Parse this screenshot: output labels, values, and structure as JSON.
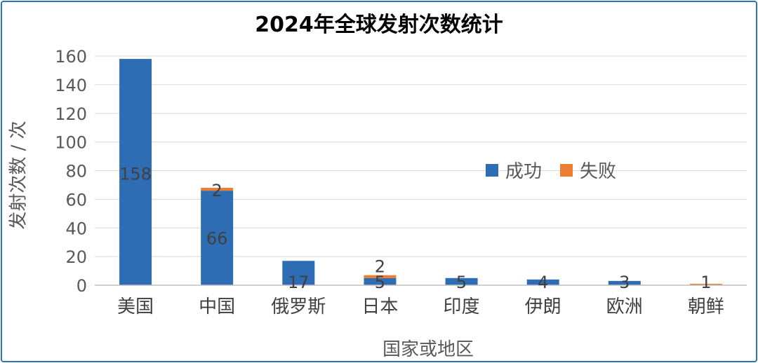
{
  "chart_data": {
    "type": "bar",
    "stacked": true,
    "title": "2024年全球发射次数统计",
    "xlabel": "国家或地区",
    "ylabel": "发射次数 / 次",
    "ylim": [
      0,
      160
    ],
    "yticks": [
      0,
      20,
      40,
      60,
      80,
      100,
      120,
      140,
      160
    ],
    "grid": true,
    "legend_position": "right-middle",
    "categories": [
      "美国",
      "中国",
      "俄罗斯",
      "日本",
      "印度",
      "伊朗",
      "欧洲",
      "朝鲜"
    ],
    "series": [
      {
        "name": "成功",
        "color": "#2e6db4",
        "values": [
          158,
          66,
          17,
          5,
          5,
          4,
          3,
          0
        ]
      },
      {
        "name": "失败",
        "color": "#ed7d31",
        "values": [
          0,
          2,
          0,
          2,
          0,
          0,
          0,
          1
        ]
      }
    ],
    "data_labels": [
      {
        "category_index": 0,
        "series_index": 0,
        "text": "158"
      },
      {
        "category_index": 1,
        "series_index": 0,
        "text": "66"
      },
      {
        "category_index": 1,
        "series_index": 1,
        "text": "2"
      },
      {
        "category_index": 2,
        "series_index": 0,
        "text": "17"
      },
      {
        "category_index": 3,
        "series_index": 0,
        "text": "5"
      },
      {
        "category_index": 3,
        "series_index": 1,
        "text": "2"
      },
      {
        "category_index": 4,
        "series_index": 0,
        "text": "5"
      },
      {
        "category_index": 5,
        "series_index": 0,
        "text": "4"
      },
      {
        "category_index": 6,
        "series_index": 0,
        "text": "3"
      },
      {
        "category_index": 7,
        "series_index": 1,
        "text": "1"
      }
    ]
  }
}
